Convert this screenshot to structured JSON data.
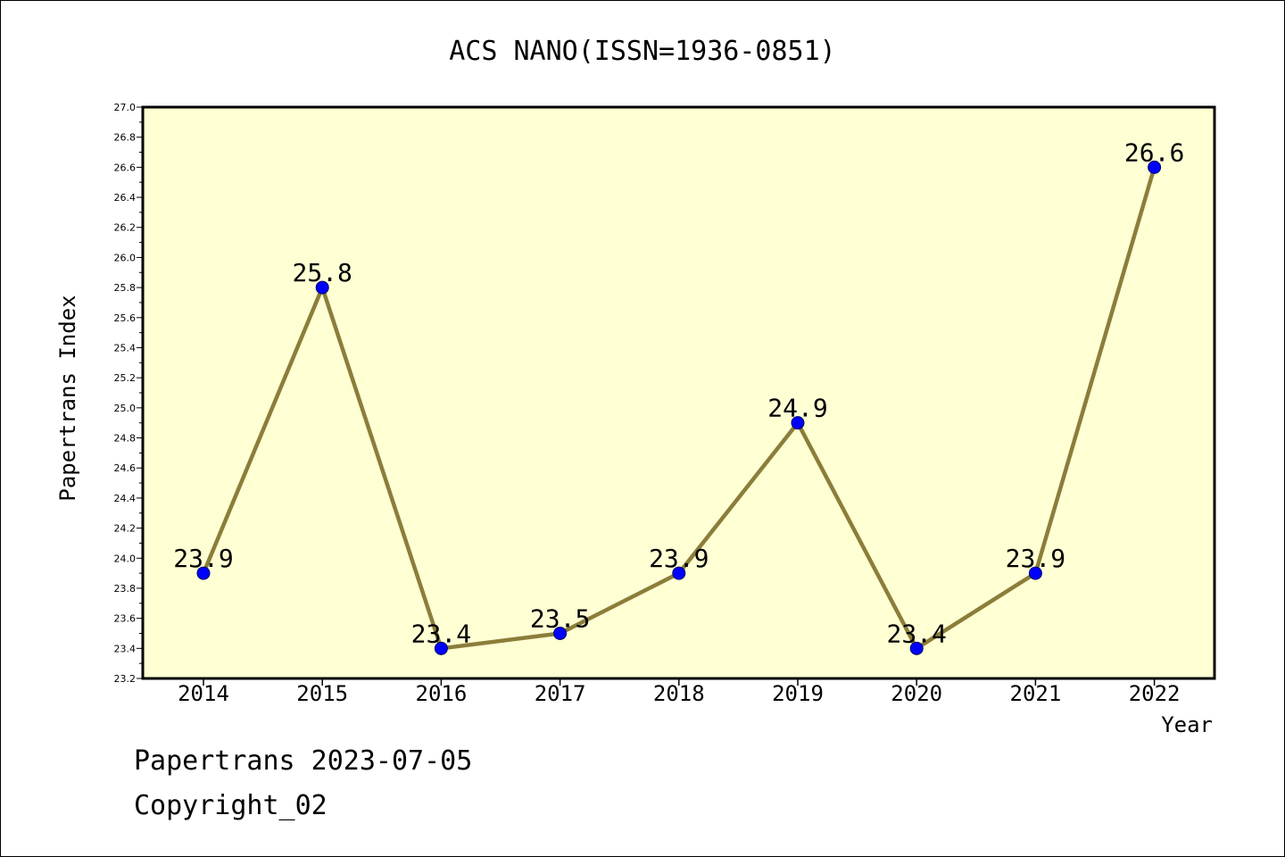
{
  "colors": {
    "background": "#ffffff",
    "plot_background": "#ffffd4",
    "line": "#8b7d3a",
    "marker_fill": "#0000ff",
    "marker_edge": "#000066"
  },
  "footer": {
    "line1": "Papertrans 2023-07-05",
    "line2": "Copyright_02"
  },
  "chart_data": {
    "type": "line",
    "title": "ACS NANO(ISSN=1936-0851)",
    "xlabel": "Year",
    "ylabel": "Papertrans Index",
    "categories": [
      "2014",
      "2015",
      "2016",
      "2017",
      "2018",
      "2019",
      "2020",
      "2021",
      "2022"
    ],
    "series": [
      {
        "values": [
          23.9,
          25.8,
          23.4,
          23.5,
          23.9,
          24.9,
          23.4,
          23.9,
          26.6
        ],
        "data_labels": [
          "23.9",
          "25.8",
          "23.4",
          "23.5",
          "23.9",
          "24.9",
          "23.4",
          "23.9",
          "26.6"
        ]
      }
    ],
    "ylim": [
      23.2,
      27.0
    ],
    "y_ticks": [
      "23.2",
      "23.4",
      "23.6",
      "23.8",
      "24.0",
      "24.2",
      "24.4",
      "24.6",
      "24.8",
      "25.0",
      "25.2",
      "25.4",
      "25.6",
      "25.8",
      "26.0",
      "26.2",
      "26.4",
      "26.6",
      "26.8",
      "27.0"
    ],
    "grid": false,
    "legend": "none"
  }
}
